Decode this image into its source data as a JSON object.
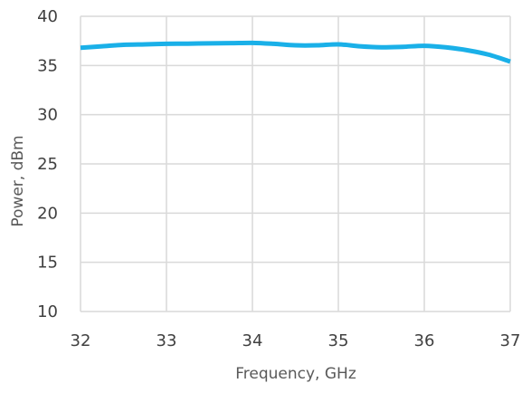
{
  "chart_data": {
    "type": "line",
    "title": "",
    "xlabel": "Frequency, GHz",
    "ylabel": "Power, dBm",
    "xlim": [
      32,
      37
    ],
    "ylim": [
      10,
      40
    ],
    "x_ticks": [
      32,
      33,
      34,
      35,
      36,
      37
    ],
    "y_ticks": [
      10,
      15,
      20,
      25,
      30,
      35,
      40
    ],
    "grid": true,
    "legend": "none",
    "series": [
      {
        "color": "#1ab0e8",
        "x": [
          32.0,
          32.25,
          32.5,
          32.75,
          33.0,
          33.25,
          33.5,
          33.75,
          34.0,
          34.25,
          34.5,
          34.75,
          35.0,
          35.25,
          35.5,
          35.75,
          36.0,
          36.25,
          36.5,
          36.75,
          37.0
        ],
        "y": [
          36.8,
          36.95,
          37.1,
          37.15,
          37.2,
          37.22,
          37.25,
          37.27,
          37.3,
          37.2,
          37.05,
          37.05,
          37.15,
          36.95,
          36.85,
          36.9,
          37.0,
          36.85,
          36.55,
          36.1,
          35.4
        ]
      }
    ]
  },
  "colors": {
    "grid": "#d9d9d9",
    "tick_text": "#404040",
    "axis_label": "#595959"
  }
}
